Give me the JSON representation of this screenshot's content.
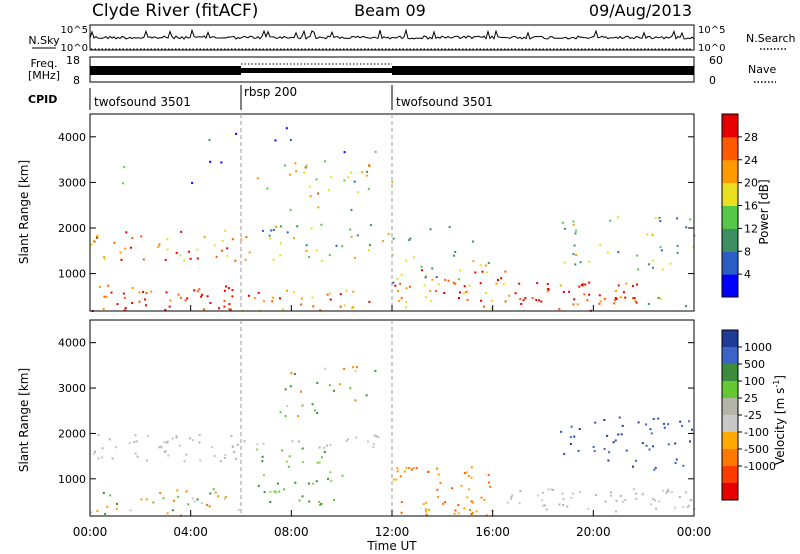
{
  "header": {
    "station": "Clyde River (fitACF)",
    "beam": "Beam 09",
    "date": "09/Aug/2013"
  },
  "sky_panel": {
    "left_label": "N.Sky",
    "right_label": "N.Search",
    "yticks": [
      "10^5",
      "10^0"
    ]
  },
  "freq_panel": {
    "left_label_1": "Freq.",
    "left_label_2": "[MHz]",
    "right_label": "Nave",
    "left_ticks": [
      "18",
      "8"
    ],
    "right_ticks": [
      "60",
      "0"
    ]
  },
  "cpid_panel": {
    "label": "CPID",
    "segments": [
      {
        "name": "twofsound 3501",
        "start_h": 0,
        "end_h": 6
      },
      {
        "name": "rbsp 200",
        "start_h": 6,
        "end_h": 12
      },
      {
        "name": "twofsound 3501",
        "start_h": 12,
        "end_h": 24
      }
    ]
  },
  "chart_data": [
    {
      "type": "heatmap",
      "name": "power",
      "ylabel": "Slant Range [km]",
      "ylim": [
        180,
        4500
      ],
      "xlim": [
        0,
        24
      ],
      "yticks": [
        "1000",
        "2000",
        "3000",
        "4000"
      ],
      "colorbar": {
        "label": "Power [dB]",
        "ticks": [
          "4",
          "8",
          "12",
          "16",
          "20",
          "24",
          "28"
        ],
        "range": [
          0,
          32
        ],
        "colors": [
          "#0000ff",
          "#2a5ec4",
          "#3d8f62",
          "#57c74a",
          "#e8e01e",
          "#ff9a00",
          "#ff5a00",
          "#e60000"
        ]
      },
      "scatter_regions": [
        {
          "t0": 0.0,
          "t1": 6.0,
          "r0": 200,
          "r1": 800,
          "level": 0.9,
          "density": 0.8
        },
        {
          "t0": 6.0,
          "t1": 12.0,
          "r0": 200,
          "r1": 700,
          "level": 0.75,
          "density": 0.55
        },
        {
          "t0": 12.0,
          "t1": 16.6,
          "r0": 250,
          "r1": 1100,
          "level": 0.75,
          "density": 0.7
        },
        {
          "t0": 16.6,
          "t1": 22.0,
          "r0": 200,
          "r1": 850,
          "level": 0.95,
          "density": 0.9
        },
        {
          "t0": 22.0,
          "t1": 24.0,
          "r0": 200,
          "r1": 500,
          "level": 0.5,
          "density": 0.4
        },
        {
          "t0": 0.0,
          "t1": 6.5,
          "r0": 1300,
          "r1": 2000,
          "level": 0.75,
          "density": 0.6
        },
        {
          "t0": 6.5,
          "t1": 12.0,
          "r0": 1300,
          "r1": 2100,
          "level": 0.45,
          "density": 0.45
        },
        {
          "t0": 6.5,
          "t1": 12.0,
          "r0": 2400,
          "r1": 3500,
          "level": 0.55,
          "density": 0.3
        },
        {
          "t0": 12.0,
          "t1": 16.0,
          "r0": 800,
          "r1": 2100,
          "level": 0.4,
          "density": 0.25
        },
        {
          "t0": 18.5,
          "t1": 24.0,
          "r0": 1100,
          "r1": 2300,
          "level": 0.45,
          "density": 0.35
        },
        {
          "t0": 0.0,
          "t1": 12.0,
          "r0": 3000,
          "r1": 4300,
          "level": 0.2,
          "density": 0.05
        }
      ]
    },
    {
      "type": "heatmap",
      "name": "velocity",
      "ylabel": "Slant Range [km]",
      "ylim": [
        180,
        4500
      ],
      "xlim": [
        0,
        24
      ],
      "yticks": [
        "1000",
        "2000",
        "3000",
        "4000"
      ],
      "xticks": [
        "00:00",
        "04:00",
        "08:00",
        "12:00",
        "16:00",
        "20:00",
        "00:00"
      ],
      "xlabel": "Time UT",
      "colorbar": {
        "label": "Velocity [m s",
        "label_sup": "-1",
        "ticks": [
          "1000",
          "500",
          "100",
          "25",
          "-25",
          "-100",
          "-500",
          "-1000"
        ],
        "colors": [
          "#1e3c96",
          "#3c64c8",
          "#3c8c3c",
          "#64c832",
          "#b4b4aa",
          "#c8c8c8",
          "#ffaa00",
          "#ff7800",
          "#ff3c00",
          "#e60000"
        ]
      },
      "scatter_regions": [
        {
          "t0": 0.0,
          "t1": 6.0,
          "r0": 1400,
          "r1": 2000,
          "level": "ground",
          "density": 0.8
        },
        {
          "t0": 6.0,
          "t1": 12.0,
          "r0": 1700,
          "r1": 2000,
          "level": "ground",
          "density": 0.6
        },
        {
          "t0": 0.0,
          "t1": 6.0,
          "r0": 200,
          "r1": 800,
          "level": "mixed",
          "density": 0.6
        },
        {
          "t0": 6.5,
          "t1": 10.0,
          "r0": 400,
          "r1": 1700,
          "level": "green",
          "density": 0.5
        },
        {
          "t0": 7.5,
          "t1": 11.5,
          "r0": 2400,
          "r1": 3500,
          "level": "mixed",
          "density": 0.35
        },
        {
          "t0": 12.0,
          "t1": 16.0,
          "r0": 200,
          "r1": 1300,
          "level": "orange",
          "density": 0.75
        },
        {
          "t0": 16.0,
          "t1": 24.0,
          "r0": 300,
          "r1": 800,
          "level": "ground",
          "density": 0.85
        },
        {
          "t0": 18.5,
          "t1": 24.0,
          "r0": 1200,
          "r1": 2400,
          "level": "blue",
          "density": 0.45
        }
      ]
    }
  ]
}
